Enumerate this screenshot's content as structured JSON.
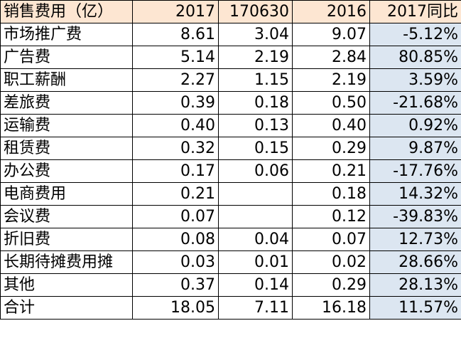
{
  "header": {
    "label": "销售费用（亿）",
    "col_2017": "2017",
    "col_170630": "170630",
    "col_2016": "2016",
    "col_yoy": "2017同比"
  },
  "rows": [
    {
      "label": "市场推广费",
      "v2017": "8.61",
      "v170630": "3.04",
      "v2016": "9.07",
      "yoy": "-5.12%"
    },
    {
      "label": "广告费",
      "v2017": "5.14",
      "v170630": "2.19",
      "v2016": "2.84",
      "yoy": "80.85%"
    },
    {
      "label": "职工薪酬",
      "v2017": "2.27",
      "v170630": "1.15",
      "v2016": "2.19",
      "yoy": "3.59%"
    },
    {
      "label": "差旅费",
      "v2017": "0.39",
      "v170630": "0.18",
      "v2016": "0.50",
      "yoy": "-21.68%"
    },
    {
      "label": "运输费",
      "v2017": "0.40",
      "v170630": "0.13",
      "v2016": "0.40",
      "yoy": "0.92%"
    },
    {
      "label": "租赁费",
      "v2017": "0.32",
      "v170630": "0.15",
      "v2016": "0.29",
      "yoy": "9.87%"
    },
    {
      "label": "办公费",
      "v2017": "0.17",
      "v170630": "0.06",
      "v2016": "0.21",
      "yoy": "-17.76%"
    },
    {
      "label": "电商费用",
      "v2017": "0.21",
      "v170630": "",
      "v2016": "0.18",
      "yoy": "14.32%"
    },
    {
      "label": "会议费",
      "v2017": "0.07",
      "v170630": "",
      "v2016": "0.12",
      "yoy": "-39.83%"
    },
    {
      "label": "折旧费",
      "v2017": "0.08",
      "v170630": "0.04",
      "v2016": "0.07",
      "yoy": "12.73%"
    },
    {
      "label": "长期待摊费用摊",
      "v2017": "0.03",
      "v170630": "0.01",
      "v2016": "0.02",
      "yoy": "28.66%"
    },
    {
      "label": "其他",
      "v2017": "0.37",
      "v170630": "0.14",
      "v2016": "0.29",
      "yoy": "28.13%"
    },
    {
      "label": "合计",
      "v2017": "18.05",
      "v170630": "7.11",
      "v2016": "16.18",
      "yoy": "11.57%"
    }
  ],
  "colors": {
    "header_bg": "#fde6d2",
    "yoy_column_bg": "#dce6f1",
    "border": "#000000"
  }
}
